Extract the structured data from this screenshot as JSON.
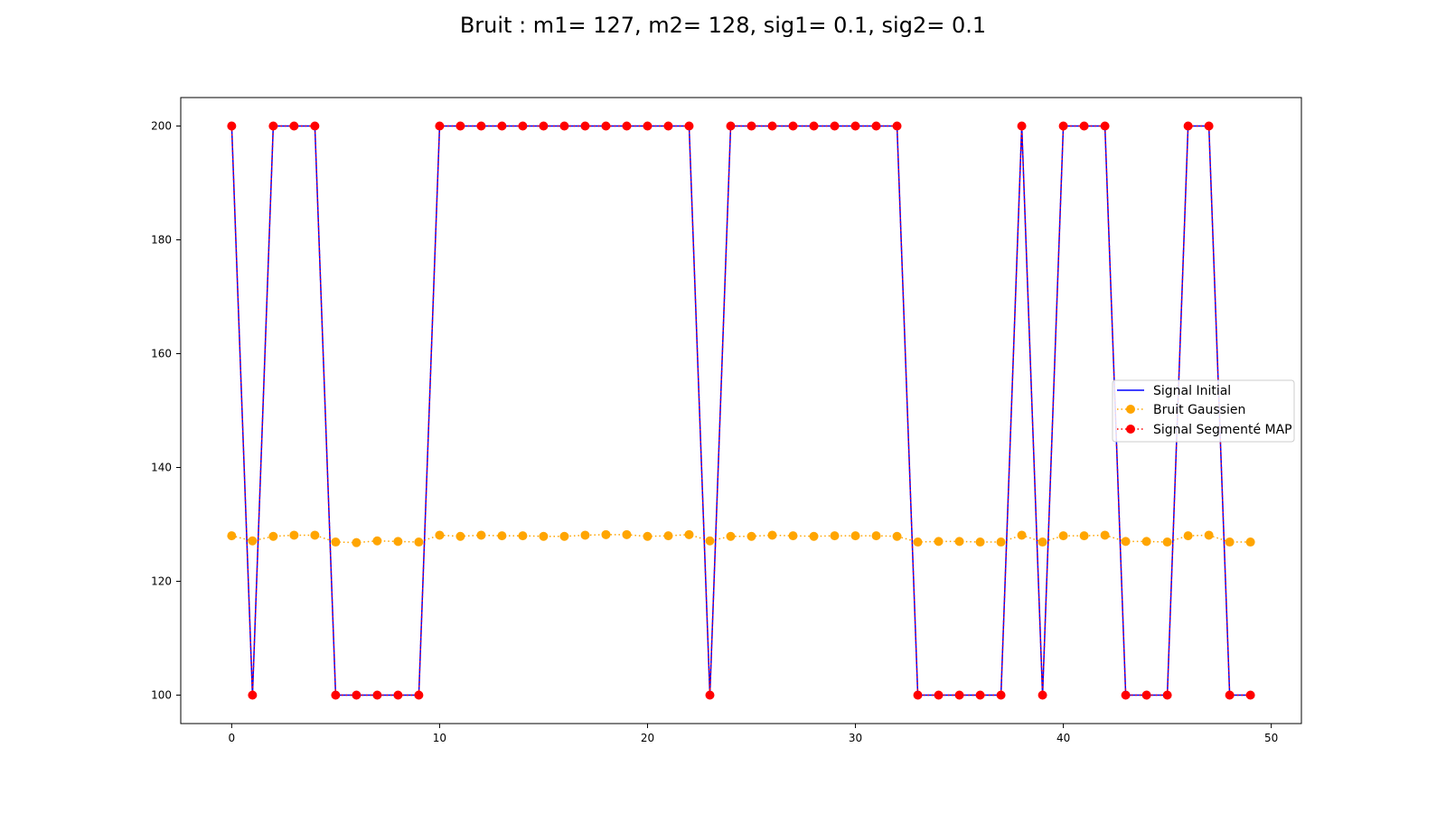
{
  "chart_data": {
    "type": "line",
    "title": "Bruit : m1= 127, m2= 128, sig1= 0.1, sig2= 0.1",
    "xlabel": "",
    "ylabel": "",
    "xlim": [
      -2.45,
      51.45
    ],
    "ylim": [
      95,
      205
    ],
    "x_ticks": [
      0,
      10,
      20,
      30,
      40,
      50
    ],
    "y_ticks": [
      100,
      120,
      140,
      160,
      180,
      200
    ],
    "grid": false,
    "legend_position": "center-right",
    "x": [
      0,
      1,
      2,
      3,
      4,
      5,
      6,
      7,
      8,
      9,
      10,
      11,
      12,
      13,
      14,
      15,
      16,
      17,
      18,
      19,
      20,
      21,
      22,
      23,
      24,
      25,
      26,
      27,
      28,
      29,
      30,
      31,
      32,
      33,
      34,
      35,
      36,
      37,
      38,
      39,
      40,
      41,
      42,
      43,
      44,
      45,
      46,
      47,
      48,
      49
    ],
    "series": [
      {
        "name": "Signal Initial",
        "color": "#0000ff",
        "style": "solid-line",
        "values": [
          200,
          100,
          200,
          200,
          200,
          100,
          100,
          100,
          100,
          100,
          200,
          200,
          200,
          200,
          200,
          200,
          200,
          200,
          200,
          200,
          200,
          200,
          200,
          100,
          200,
          200,
          200,
          200,
          200,
          200,
          200,
          200,
          200,
          100,
          100,
          100,
          100,
          100,
          200,
          100,
          200,
          200,
          200,
          100,
          100,
          100,
          200,
          200,
          100,
          100
        ]
      },
      {
        "name": "Bruit Gaussien",
        "color": "#ffa500",
        "style": "dotted-line-with-markers",
        "values": [
          128.0,
          127.1,
          127.9,
          128.1,
          128.1,
          126.9,
          126.8,
          127.1,
          127.0,
          126.9,
          128.1,
          127.9,
          128.1,
          128.0,
          128.0,
          127.9,
          127.9,
          128.1,
          128.2,
          128.2,
          127.9,
          128.0,
          128.2,
          127.1,
          127.9,
          127.9,
          128.1,
          128.0,
          127.9,
          128.0,
          128.0,
          128.0,
          127.9,
          126.9,
          127.0,
          127.0,
          126.9,
          126.9,
          128.1,
          126.9,
          128.0,
          128.0,
          128.1,
          127.0,
          127.0,
          126.9,
          128.0,
          128.1,
          126.9,
          126.9
        ]
      },
      {
        "name": "Signal Segmenté MAP",
        "color": "#ff0000",
        "style": "dotted-line-with-markers",
        "values": [
          200,
          100,
          200,
          200,
          200,
          100,
          100,
          100,
          100,
          100,
          200,
          200,
          200,
          200,
          200,
          200,
          200,
          200,
          200,
          200,
          200,
          200,
          200,
          100,
          200,
          200,
          200,
          200,
          200,
          200,
          200,
          200,
          200,
          100,
          100,
          100,
          100,
          100,
          200,
          100,
          200,
          200,
          200,
          100,
          100,
          100,
          200,
          200,
          100,
          100
        ]
      }
    ]
  }
}
